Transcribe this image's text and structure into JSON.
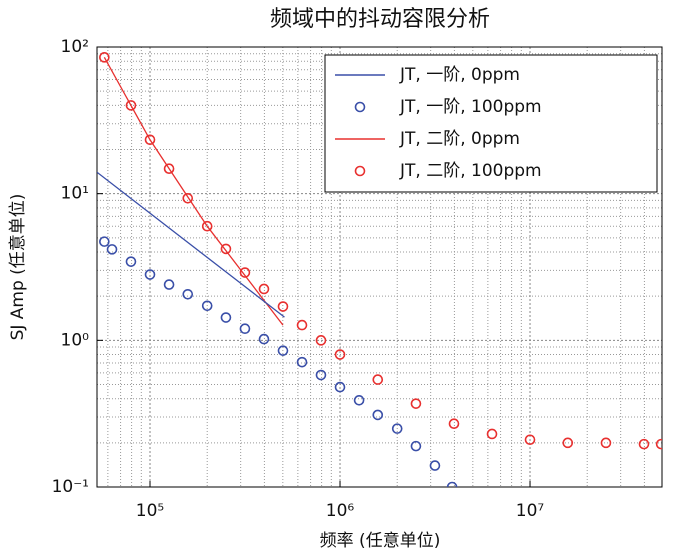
{
  "chart_data": {
    "type": "scatter",
    "title": "频域中的抖动容限分析",
    "x_label": "频率 (任意单位)",
    "y_label": "SJ Amp (任意单位)",
    "xscale": "log",
    "yscale": "log",
    "grid": true,
    "legend": "upper right",
    "xlim": [
      52600,
      49500000
    ],
    "ylim": [
      0.1,
      100
    ],
    "xticks": [
      {
        "value": 100000,
        "label": "10⁵"
      },
      {
        "value": 1000000,
        "label": "10⁶"
      },
      {
        "value": 10000000,
        "label": "10⁷"
      }
    ],
    "yticks": [
      {
        "value": 0.1,
        "label": "10⁻¹"
      },
      {
        "value": 1,
        "label": "10⁰"
      },
      {
        "value": 10,
        "label": "10¹"
      },
      {
        "value": 100,
        "label": "10²"
      }
    ],
    "series": [
      {
        "name": "JT, 一阶, 0ppm",
        "color": "#3a4fa8",
        "mode": "line",
        "x": [
          52600,
          510000
        ],
        "values": [
          14,
          1.44
        ]
      },
      {
        "name": "JT, 一阶, 100ppm",
        "color": "#3a4fa8",
        "mode": "markers",
        "x": [
          57500,
          63100,
          79400,
          100000,
          126000,
          158000,
          200000,
          251000,
          316000,
          398000,
          501000,
          631000,
          794000,
          1000000,
          1260000,
          1580000,
          2000000,
          2510000,
          3160000,
          3890000
        ],
        "values": [
          4.71,
          4.17,
          3.44,
          2.81,
          2.4,
          2.06,
          1.72,
          1.43,
          1.2,
          1.02,
          0.85,
          0.71,
          0.58,
          0.48,
          0.39,
          0.31,
          0.25,
          0.19,
          0.14,
          0.1
        ]
      },
      {
        "name": "JT, 二阶, 0ppm",
        "color": "#e8302f",
        "mode": "line",
        "x": [
          57500,
          100000,
          200000,
          501000
        ],
        "values": [
          85,
          23.3,
          6.0,
          1.27
        ]
      },
      {
        "name": "JT, 二阶, 100ppm",
        "color": "#e8302f",
        "mode": "markers",
        "x": [
          57500,
          79400,
          100000,
          126000,
          158000,
          200000,
          251000,
          316000,
          398000,
          501000,
          631000,
          794000,
          1000000,
          1580000,
          2510000,
          3980000,
          6310000,
          10000000,
          15800000,
          25100000,
          39800000,
          49000000
        ],
        "values": [
          85,
          40,
          23.3,
          14.8,
          9.3,
          6.0,
          4.2,
          2.9,
          2.24,
          1.7,
          1.27,
          1.0,
          0.8,
          0.54,
          0.37,
          0.27,
          0.23,
          0.21,
          0.2,
          0.2,
          0.196,
          0.196
        ]
      }
    ]
  }
}
